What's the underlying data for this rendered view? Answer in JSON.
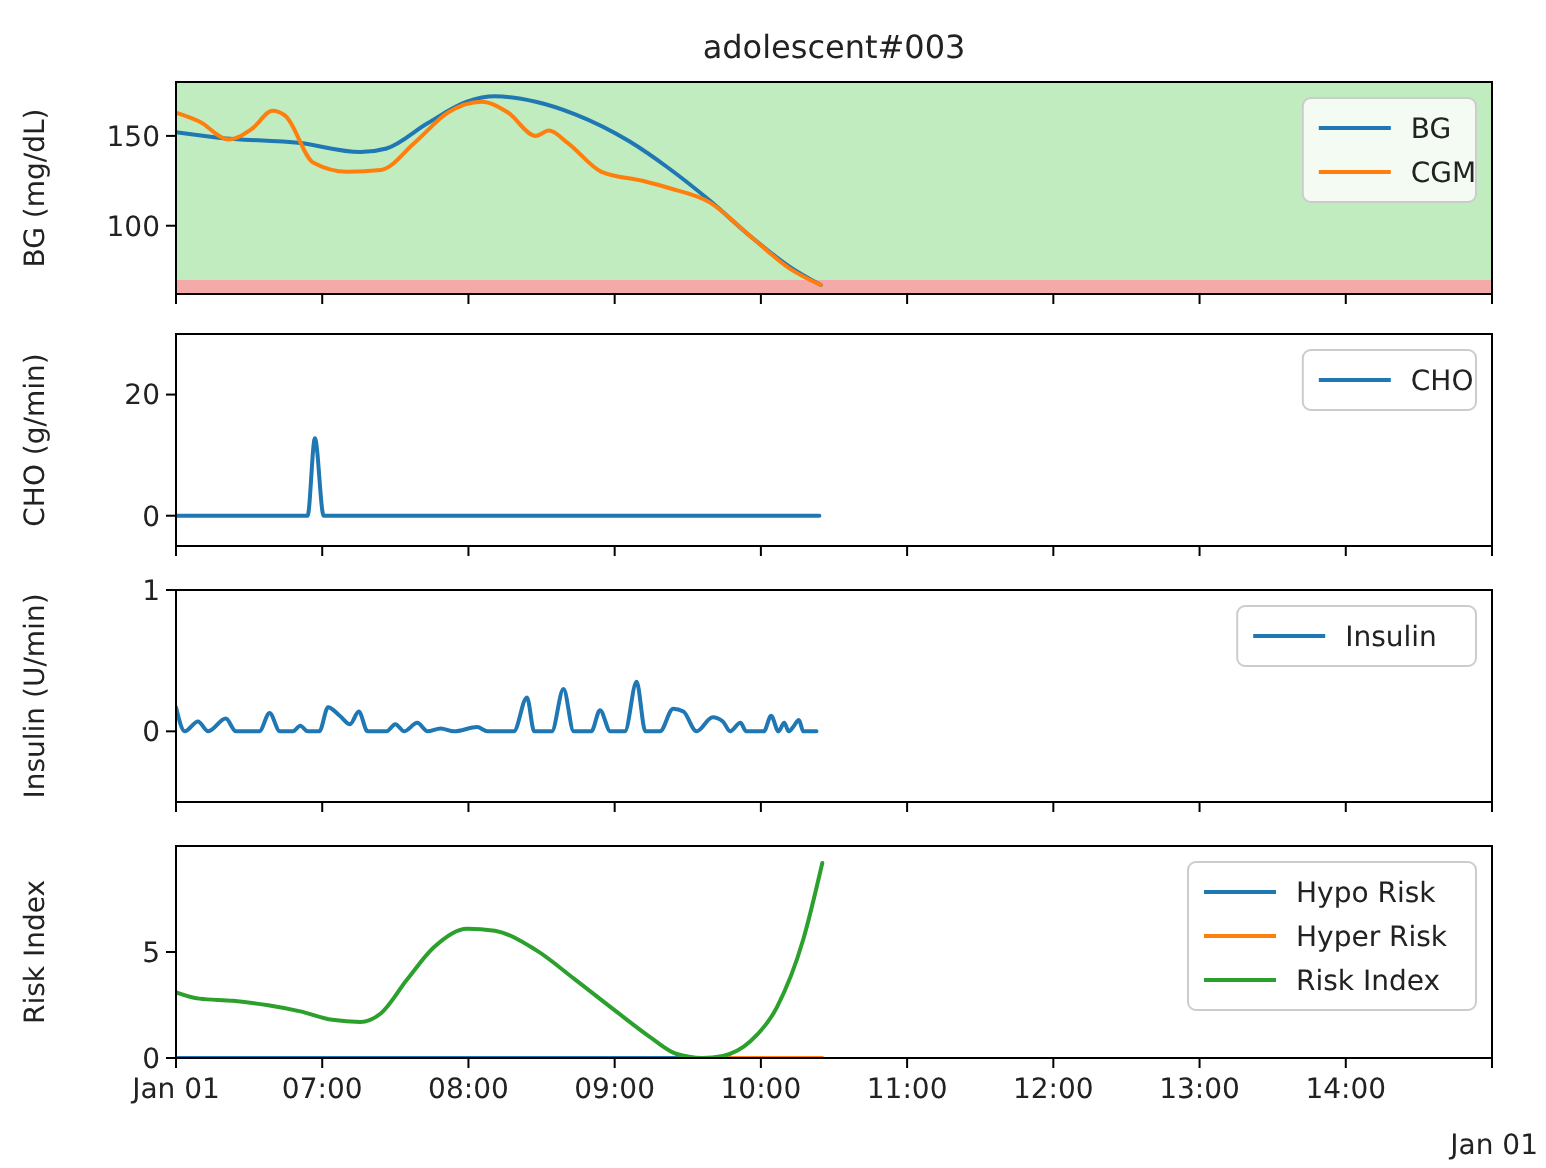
{
  "chart_data": [
    {
      "type": "line",
      "title": "adolescent#003",
      "ylabel": "BG (mg/dL)",
      "xlim": [
        6,
        15
      ],
      "xticks": [
        {
          "value": 6,
          "label": null
        },
        {
          "value": 7,
          "label": null
        },
        {
          "value": 8,
          "label": null
        },
        {
          "value": 9,
          "label": null
        },
        {
          "value": 10,
          "label": null
        },
        {
          "value": 11,
          "label": null
        },
        {
          "value": 12,
          "label": null
        },
        {
          "value": 13,
          "label": null
        },
        {
          "value": 14,
          "label": null
        },
        {
          "value": 15,
          "label": null
        }
      ],
      "ylim": [
        62,
        180
      ],
      "yticks": [
        100,
        150
      ],
      "tick_labels": "y",
      "legend": "top right",
      "grid": false,
      "bands": [
        {
          "axis": "y",
          "from": 70,
          "to": 180,
          "color": "#c0ecc0"
        },
        {
          "axis": "y",
          "from": 62,
          "to": 70,
          "color": "#f5aaaa"
        }
      ],
      "series": [
        {
          "name": "BG",
          "color": "#1f77b4",
          "x": [
            6.0,
            6.29,
            6.85,
            7.26,
            7.44,
            7.72,
            7.99,
            8.18,
            8.46,
            8.73,
            9.1,
            9.37,
            9.65,
            9.93,
            10.2,
            10.41
          ],
          "values": [
            152,
            149,
            146,
            141,
            143,
            157,
            169,
            172,
            169,
            162,
            147,
            132,
            114,
            94,
            77,
            67
          ]
        },
        {
          "name": "CGM",
          "color": "#ff7f0e",
          "x": [
            6.0,
            6.16,
            6.36,
            6.52,
            6.66,
            6.75,
            6.94,
            7.17,
            7.4,
            7.63,
            7.86,
            8.09,
            8.27,
            8.46,
            8.55,
            8.68,
            8.91,
            9.19,
            9.37,
            9.65,
            9.93,
            10.2,
            10.41
          ],
          "values": [
            163,
            158,
            148,
            154,
            164,
            161,
            135,
            130,
            131,
            146,
            163,
            169,
            163,
            150,
            153,
            146,
            130,
            125,
            121,
            113,
            94,
            76,
            67
          ]
        }
      ]
    },
    {
      "type": "line",
      "ylabel": "CHO (g/min)",
      "xlim": [
        6,
        15
      ],
      "xticks": [
        {
          "value": 6,
          "label": null
        },
        {
          "value": 7,
          "label": null
        },
        {
          "value": 8,
          "label": null
        },
        {
          "value": 9,
          "label": null
        },
        {
          "value": 10,
          "label": null
        },
        {
          "value": 11,
          "label": null
        },
        {
          "value": 12,
          "label": null
        },
        {
          "value": 13,
          "label": null
        },
        {
          "value": 14,
          "label": null
        },
        {
          "value": 15,
          "label": null
        }
      ],
      "ylim": [
        -5,
        30
      ],
      "yticks": [
        0,
        20
      ],
      "tick_labels": "y",
      "legend": "top right",
      "grid": false,
      "series": [
        {
          "name": "CHO",
          "color": "#1f77b4",
          "x": [
            6.0,
            6.9,
            6.95,
            7.01,
            10.4
          ],
          "values": [
            0,
            0,
            12.8,
            0,
            0
          ]
        }
      ]
    },
    {
      "type": "line",
      "ylabel": "Insulin (U/min)",
      "xlim": [
        6,
        15
      ],
      "xticks": [
        {
          "value": 6,
          "label": null
        },
        {
          "value": 7,
          "label": null
        },
        {
          "value": 8,
          "label": null
        },
        {
          "value": 9,
          "label": null
        },
        {
          "value": 10,
          "label": null
        },
        {
          "value": 11,
          "label": null
        },
        {
          "value": 12,
          "label": null
        },
        {
          "value": 13,
          "label": null
        },
        {
          "value": 14,
          "label": null
        },
        {
          "value": 15,
          "label": null
        }
      ],
      "ylim": [
        -0.5,
        1
      ],
      "yticks": [
        0,
        1
      ],
      "tick_labels": "y",
      "legend": "top right",
      "grid": false,
      "series": [
        {
          "name": "Insulin",
          "color": "#1f77b4",
          "x": [
            6.0,
            6.06,
            6.15,
            6.22,
            6.34,
            6.41,
            6.57,
            6.64,
            6.71,
            6.8,
            6.85,
            6.9,
            6.98,
            7.04,
            7.12,
            7.19,
            7.25,
            7.31,
            7.44,
            7.5,
            7.56,
            7.65,
            7.72,
            7.81,
            7.9,
            8.06,
            8.13,
            8.31,
            8.4,
            8.45,
            8.57,
            8.65,
            8.72,
            8.84,
            8.9,
            8.97,
            9.07,
            9.15,
            9.21,
            9.31,
            9.4,
            9.47,
            9.56,
            9.67,
            9.74,
            9.79,
            9.86,
            9.9,
            10.02,
            10.07,
            10.12,
            10.16,
            10.19,
            10.22,
            10.26,
            10.29,
            10.38
          ],
          "values": [
            0.17,
            0,
            0.07,
            0,
            0.09,
            0,
            0,
            0.13,
            0,
            0,
            0.04,
            0,
            0,
            0.17,
            0.11,
            0.05,
            0.14,
            0,
            0,
            0.05,
            0,
            0.06,
            0,
            0.02,
            0,
            0.03,
            0,
            0,
            0.24,
            0,
            0,
            0.3,
            0,
            0,
            0.15,
            0,
            0,
            0.35,
            0,
            0,
            0.16,
            0.14,
            0,
            0.1,
            0.07,
            0,
            0.06,
            0,
            0,
            0.11,
            0,
            0.06,
            0,
            0.03,
            0.08,
            0,
            0
          ]
        }
      ]
    },
    {
      "type": "line",
      "ylabel": "Risk Index",
      "xlim": [
        6,
        15
      ],
      "xticks": [
        {
          "value": 6,
          "label": "Jan 01"
        },
        {
          "value": 7,
          "label": "07:00"
        },
        {
          "value": 8,
          "label": "08:00"
        },
        {
          "value": 9,
          "label": "09:00"
        },
        {
          "value": 10,
          "label": "10:00"
        },
        {
          "value": 11,
          "label": "11:00"
        },
        {
          "value": 12,
          "label": "12:00"
        },
        {
          "value": 13,
          "label": "13:00"
        },
        {
          "value": 14,
          "label": "14:00"
        },
        {
          "value": 15,
          "label": null
        }
      ],
      "ylim": [
        0,
        10
      ],
      "yticks": [
        0,
        5
      ],
      "legend": "top right",
      "grid": false,
      "annotations": [
        "Jan 01"
      ],
      "series": [
        {
          "name": "Hypo Risk",
          "color": "#1f77b4",
          "x": [
            6.0,
            9.7
          ],
          "values": [
            0,
            0
          ]
        },
        {
          "name": "Hyper Risk",
          "color": "#ff7f0e",
          "x": [
            9.7,
            10.42
          ],
          "values": [
            0,
            0
          ]
        },
        {
          "name": "Risk Index",
          "color": "#2ca02c",
          "x": [
            6.0,
            6.16,
            6.39,
            6.62,
            6.85,
            7.07,
            7.26,
            7.4,
            7.58,
            7.76,
            7.99,
            8.18,
            8.46,
            8.73,
            9.01,
            9.24,
            9.42,
            9.6,
            9.74,
            9.93,
            10.11,
            10.29,
            10.42
          ],
          "values": [
            3.1,
            2.8,
            2.7,
            2.5,
            2.2,
            1.8,
            1.7,
            2.1,
            3.7,
            5.2,
            6.1,
            6.0,
            5.1,
            3.7,
            2.2,
            1.0,
            0.2,
            0,
            0.1,
            0.8,
            2.4,
            5.6,
            9.2
          ]
        }
      ]
    }
  ]
}
